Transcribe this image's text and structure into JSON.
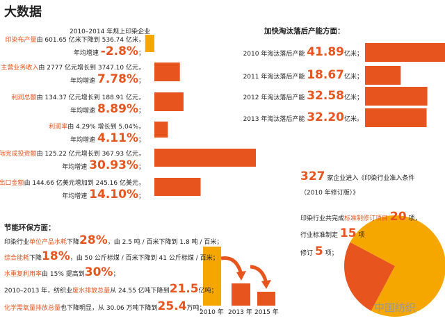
{
  "title": "大数据",
  "growth": {
    "heading": "2010–2014 年规上印染企业",
    "items": [
      {
        "label": "印染布产量",
        "text": "由 601.65 亿米下降到 536.74 亿米，",
        "rate_prefix": "年均增速",
        "value": -2.8,
        "value_label": "-2.8%",
        "end": "；"
      },
      {
        "label": "主营业务收入",
        "text": "由 2777 亿元增长到 3747.10 亿元，",
        "rate_prefix": "年均增速",
        "value": 7.78,
        "value_label": "7.78%",
        "end": "；"
      },
      {
        "label": "利润总额",
        "text": "由 134.37 亿元增长到 188.91 亿元，",
        "rate_prefix": "年均增速",
        "value": 8.89,
        "value_label": "8.89%",
        "end": "；"
      },
      {
        "label": "利润率",
        "text": "由 4.29% 增长到 5.04%，",
        "rate_prefix": "年均增速",
        "value": 4.11,
        "value_label": "4.11%",
        "end": "；"
      },
      {
        "label": "实际完成投资额",
        "text": "由 125.22 亿元增长到 367.93 亿元，",
        "rate_prefix": "年均增速",
        "value": 30.93,
        "value_label": "30.93%",
        "end": "；"
      },
      {
        "label": "出口金额",
        "text": "由 144.66 亿美元增加到 245.16 亿美元，",
        "rate_prefix": "年均增速",
        "value": 14.1,
        "value_label": "14.10%",
        "end": "；"
      }
    ]
  },
  "capacity": {
    "heading": "加快淘汰落后产能方面：",
    "items": [
      {
        "label": "2010 年淘汰落后产能",
        "value": 41.89,
        "unit": "亿米；"
      },
      {
        "label": "2011 年淘汰落后产能",
        "value": 18.67,
        "unit": "亿米；"
      },
      {
        "label": "2012 年淘汰落后产能",
        "value": 32.58,
        "unit": "亿米；"
      },
      {
        "label": "2013 年淘汰落后产能",
        "value": 32.2,
        "value_label": "32.20",
        "unit": "亿米。"
      }
    ]
  },
  "access": {
    "count": 327,
    "text": "家企业进入《印染行业准入条件",
    "text2": "（2010 年修订版）》"
  },
  "standards": {
    "line1_prefix": "印染行业共完成",
    "line1_highlight": "标准制修订项目",
    "total": 20,
    "line1_unit": "项，",
    "line2_prefix": "行业标准制定",
    "made": 15,
    "line2_unit": "项",
    "line3_prefix": "修订",
    "revised": 5,
    "line3_unit": "项；"
  },
  "environment": {
    "heading": "节能环保方面：",
    "lines": [
      [
        "印染行业",
        "单位产品水耗",
        "下降",
        "28%",
        "，由 2.5 吨 / 百米下降到 1.8 吨 / 百米；"
      ],
      [
        "综合能耗",
        "下降",
        "18%",
        "，由 50 公斤标煤 / 百米下降到 41 公斤标煤 / 百米；"
      ],
      [
        "水重复利用率",
        "由 15% 提高到",
        "30%",
        "；"
      ],
      [
        "2010–2013 年，纺织业",
        "废水排放总量",
        "从 24.55 亿吨下降到",
        "21.5",
        "亿吨；"
      ],
      [
        "化学需氧量排放总量",
        "也下降明显，从 30.06 万吨下降到",
        "25.4",
        "万吨；"
      ]
    ],
    "years": [
      "2010 年",
      "2013 年",
      "2015 年"
    ]
  },
  "watermark": "中国纺织"
}
